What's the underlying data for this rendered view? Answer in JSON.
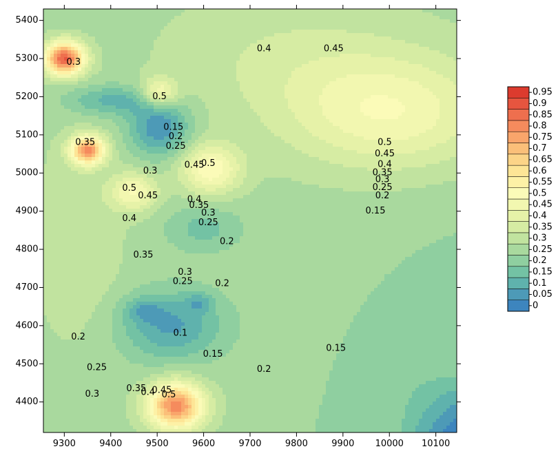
{
  "chart_data": {
    "type": "heatmap",
    "subtype": "filled-contour",
    "title": "",
    "xlabel": "",
    "ylabel": "",
    "xlim": [
      9255,
      10145
    ],
    "ylim": [
      4320,
      5430
    ],
    "x_ticks": [
      9300,
      9400,
      9500,
      9600,
      9700,
      9800,
      9900,
      10000,
      10100
    ],
    "y_ticks": [
      4400,
      4500,
      4600,
      4700,
      4800,
      4900,
      5000,
      5100,
      5200,
      5300,
      5400
    ],
    "x_tick_labels": [
      "9300",
      "9400",
      "9500",
      "9600",
      "9700",
      "9800",
      "9900",
      "10000",
      "10100"
    ],
    "y_tick_labels": [
      "4400",
      "4500",
      "4600",
      "4700",
      "4800",
      "4900",
      "5000",
      "5100",
      "5200",
      "5300",
      "5400"
    ],
    "colorbar": {
      "levels": [
        0,
        0.05,
        0.1,
        0.15,
        0.2,
        0.25,
        0.3,
        0.35,
        0.4,
        0.45,
        0.5,
        0.55,
        0.6,
        0.65,
        0.7,
        0.75,
        0.8,
        0.85,
        0.9,
        0.95
      ],
      "labels": [
        "0",
        "0.05",
        "0.1",
        "0.15",
        "0.2",
        "0.25",
        "0.3",
        "0.35",
        "0.4",
        "0.45",
        "0.5",
        "0.55",
        "0.6",
        "0.65",
        "0.7",
        "0.75",
        "0.8",
        "0.85",
        "0.9",
        "0.95"
      ],
      "colors": [
        "#3d85be",
        "#4d9ab7",
        "#5fb2ad",
        "#73c2a4",
        "#8fcfa0",
        "#a9d99e",
        "#c1e39f",
        "#d6eca3",
        "#e6f2a8",
        "#f2f7b0",
        "#fbfbb8",
        "#fdf1a6",
        "#fde596",
        "#fcd488",
        "#fbbf79",
        "#f9a56b",
        "#f58b5d",
        "#ee6f4e",
        "#e6553f",
        "#dc3b2e"
      ]
    },
    "highlighted_contours": [
      0.15,
      0.25,
      0.35,
      0.5
    ],
    "contour_labels": [
      {
        "text": "0.3",
        "x": 9320,
        "y": 5290
      },
      {
        "text": "0.35",
        "x": 9345,
        "y": 5080
      },
      {
        "text": "0.4",
        "x": 9730,
        "y": 5325
      },
      {
        "text": "0.45",
        "x": 9880,
        "y": 5325
      },
      {
        "text": "0.5",
        "x": 9990,
        "y": 5080
      },
      {
        "text": "0.45",
        "x": 9990,
        "y": 5050
      },
      {
        "text": "0.4",
        "x": 9990,
        "y": 5022
      },
      {
        "text": "0.35",
        "x": 9985,
        "y": 5000
      },
      {
        "text": "0.3",
        "x": 9985,
        "y": 4982
      },
      {
        "text": "0.25",
        "x": 9985,
        "y": 4962
      },
      {
        "text": "0.2",
        "x": 9985,
        "y": 4940
      },
      {
        "text": "0.15",
        "x": 9970,
        "y": 4900
      },
      {
        "text": "0.15",
        "x": 9535,
        "y": 5120
      },
      {
        "text": "0.2",
        "x": 9540,
        "y": 5095
      },
      {
        "text": "0.25",
        "x": 9540,
        "y": 5070
      },
      {
        "text": "0.45",
        "x": 9580,
        "y": 5020
      },
      {
        "text": "0.5",
        "x": 9610,
        "y": 5025
      },
      {
        "text": "0.3",
        "x": 9485,
        "y": 5005
      },
      {
        "text": "0.5",
        "x": 9440,
        "y": 4960
      },
      {
        "text": "0.45",
        "x": 9480,
        "y": 4940
      },
      {
        "text": "0.4",
        "x": 9440,
        "y": 4880
      },
      {
        "text": "0.4",
        "x": 9580,
        "y": 4930
      },
      {
        "text": "0.35",
        "x": 9590,
        "y": 4915
      },
      {
        "text": "0.3",
        "x": 9610,
        "y": 4895
      },
      {
        "text": "0.25",
        "x": 9610,
        "y": 4870
      },
      {
        "text": "0.2",
        "x": 9650,
        "y": 4820
      },
      {
        "text": "0.35",
        "x": 9470,
        "y": 4785
      },
      {
        "text": "0.3",
        "x": 9560,
        "y": 4740
      },
      {
        "text": "0.25",
        "x": 9555,
        "y": 4715
      },
      {
        "text": "0.2",
        "x": 9640,
        "y": 4710
      },
      {
        "text": "0.2",
        "x": 9330,
        "y": 4570
      },
      {
        "text": "0.1",
        "x": 9550,
        "y": 4580
      },
      {
        "text": "0.15",
        "x": 9620,
        "y": 4525
      },
      {
        "text": "0.25",
        "x": 9370,
        "y": 4490
      },
      {
        "text": "0.2",
        "x": 9730,
        "y": 4485
      },
      {
        "text": "0.15",
        "x": 9885,
        "y": 4540
      },
      {
        "text": "0.3",
        "x": 9360,
        "y": 4420
      },
      {
        "text": "0.35",
        "x": 9455,
        "y": 4435
      },
      {
        "text": "0.4",
        "x": 9480,
        "y": 4425
      },
      {
        "text": "0.45",
        "x": 9510,
        "y": 4430
      },
      {
        "text": "0.5",
        "x": 9525,
        "y": 4418
      },
      {
        "text": "0.5",
        "x": 9505,
        "y": 5200
      }
    ]
  }
}
